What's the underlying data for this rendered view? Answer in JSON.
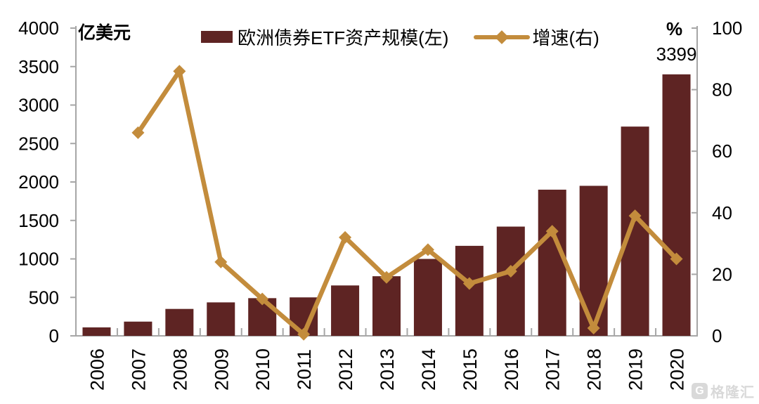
{
  "chart_data": {
    "type": "combo",
    "categories": [
      "2006",
      "2007",
      "2008",
      "2009",
      "2010",
      "2011",
      "2012",
      "2013",
      "2014",
      "2015",
      "2016",
      "2017",
      "2018",
      "2019",
      "2020"
    ],
    "series": [
      {
        "name": "欧洲债券ETF资产规模(左)",
        "type": "bar",
        "axis": "left",
        "color": "#5E2423",
        "values": [
          110,
          185,
          350,
          435,
          490,
          500,
          655,
          775,
          1000,
          1170,
          1420,
          1900,
          1950,
          2720,
          3399
        ]
      },
      {
        "name": "增速(右)",
        "type": "line",
        "axis": "right",
        "color": "#C38C3C",
        "values": [
          null,
          66,
          86,
          24,
          12,
          0.5,
          32,
          19,
          28,
          17,
          21,
          34,
          2.5,
          39,
          25
        ]
      }
    ],
    "left_axis": {
      "label": "亿美元",
      "min": 0,
      "max": 4000,
      "tick_step": 500
    },
    "right_axis": {
      "label": "%",
      "min": 0,
      "max": 100,
      "tick_step": 20
    },
    "legend_position": "top",
    "grid": false,
    "data_label": {
      "series": 0,
      "index": 14,
      "text": "3399"
    },
    "appearance": {
      "axis_color": "#A6A6A6",
      "text_color": "#000000",
      "background": "#FFFFFF"
    }
  },
  "watermark": {
    "logo_letter": "G",
    "text": "格隆汇"
  }
}
